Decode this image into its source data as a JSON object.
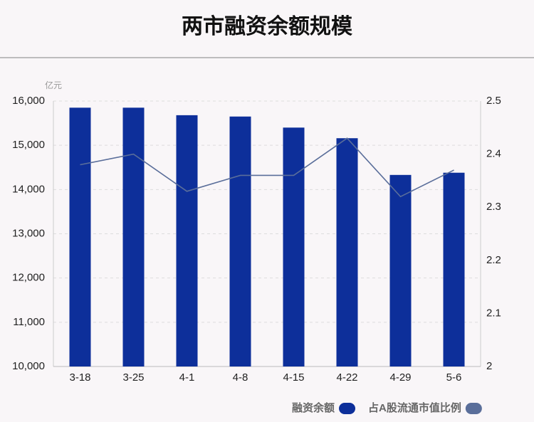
{
  "chart_data": {
    "type": "bar_line",
    "title": "两市融资余额规模",
    "y_label": "亿元",
    "categories": [
      "3-18",
      "3-25",
      "4-1",
      "4-8",
      "4-15",
      "4-22",
      "4-29",
      "5-6"
    ],
    "series": [
      {
        "name": "融资余额",
        "color": "#0d2f9a",
        "type": "bar",
        "values": [
          15850,
          15850,
          15680,
          15650,
          15400,
          15160,
          14330,
          14380
        ]
      },
      {
        "name": "占A股流通市值比例",
        "color": "#5a6e9a",
        "type": "line",
        "axis": "y2",
        "values": [
          2.38,
          2.4,
          2.33,
          2.36,
          2.36,
          2.43,
          2.32,
          2.37
        ]
      }
    ],
    "ylim": [
      10000,
      16000
    ],
    "yticks": [
      {
        "value": 10000,
        "label": "10,000"
      },
      {
        "value": 11000,
        "label": "11,000"
      },
      {
        "value": 12000,
        "label": "12,000"
      },
      {
        "value": 13000,
        "label": "13,000"
      },
      {
        "value": 14000,
        "label": "14,000"
      },
      {
        "value": 15000,
        "label": "15,000"
      },
      {
        "value": 16000,
        "label": "16,000"
      }
    ],
    "y2lim": [
      2,
      2.5
    ],
    "y2ticks": [
      2,
      2.1,
      2.2,
      2.3,
      2.4,
      2.5
    ],
    "grid": true
  }
}
